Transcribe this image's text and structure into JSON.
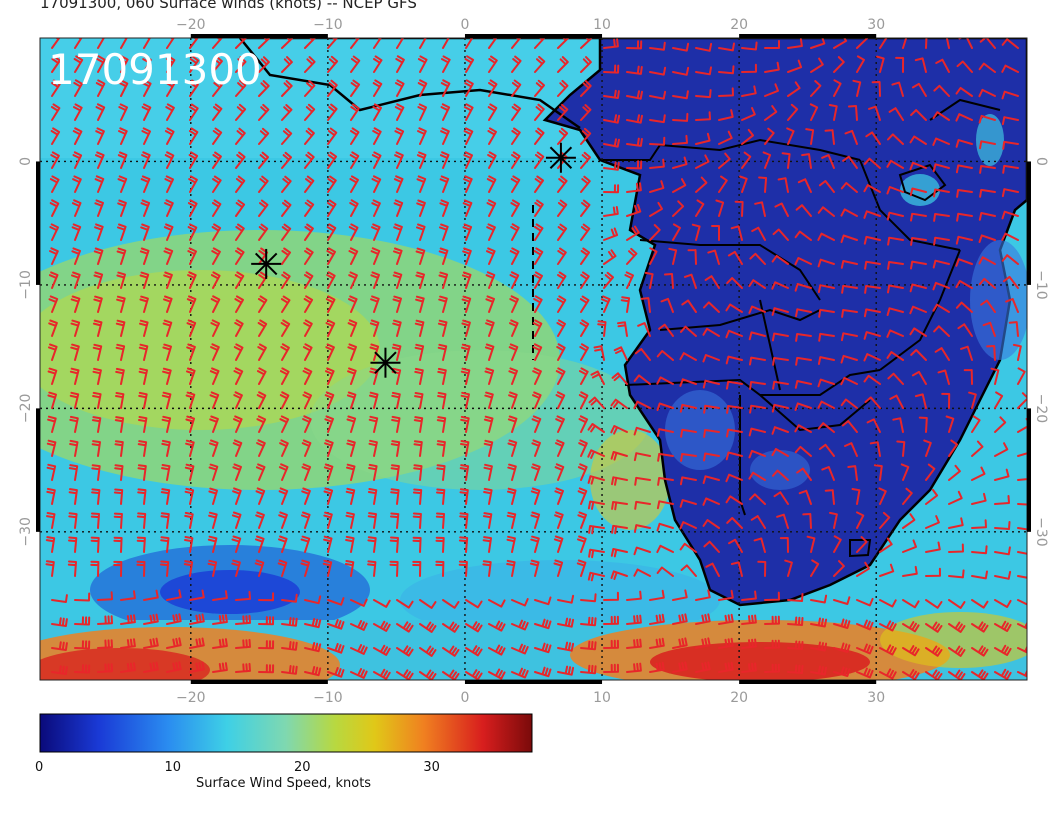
{
  "title": "17091300, 060 Surface winds (knots) -- NCEP GFS",
  "stamp": "17091300",
  "map": {
    "lon_range": [
      -31,
      41
    ],
    "lat_range": [
      -42,
      10
    ],
    "lon_ticks": [
      "−20",
      "−10",
      "0",
      "10",
      "20",
      "30"
    ],
    "lon_tick_values": [
      -20,
      -10,
      0,
      10,
      20,
      30
    ],
    "lat_ticks_left": [
      "0",
      "−10",
      "−20",
      "−30"
    ],
    "lat_tick_values": [
      0,
      -10,
      -20,
      -30
    ],
    "grid_style": "dotted",
    "barb_color": "#e8262a",
    "land_color": "#1e2fa8",
    "coastline_color": "#000000",
    "markers": [
      {
        "symbol": "asterisk",
        "lon": 7.0,
        "lat": 0.3
      },
      {
        "symbol": "asterisk",
        "lon": -14.5,
        "lat": -8.3
      },
      {
        "symbol": "asterisk",
        "lon": -5.8,
        "lat": -16.3
      }
    ]
  },
  "colorbar": {
    "label": "Surface Wind Speed, knots",
    "ticks": [
      "0",
      "10",
      "20",
      "30"
    ],
    "tick_values": [
      0,
      10,
      20,
      30
    ],
    "range": [
      0,
      38
    ],
    "colors": [
      "#0a0a7a",
      "#1a3ad6",
      "#2a8cf0",
      "#3ed0e6",
      "#7fd8b0",
      "#b8d840",
      "#e0c818",
      "#f08020",
      "#d81e1e",
      "#7a0a0a"
    ]
  }
}
